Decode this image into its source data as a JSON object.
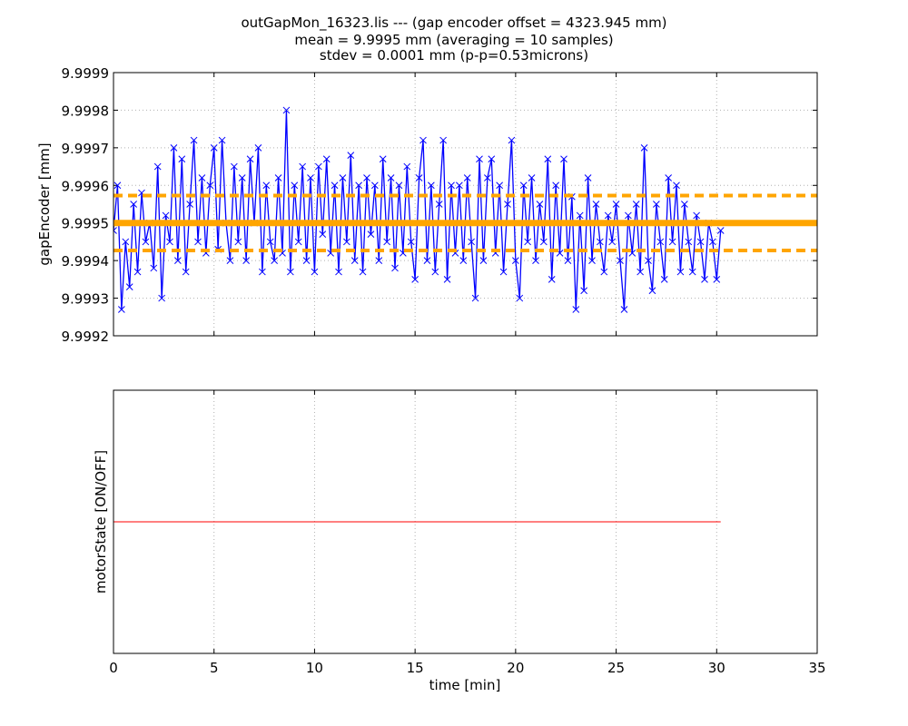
{
  "chart_data": [
    {
      "type": "line",
      "title_lines": [
        "outGapMon_16323.lis --- (gap encoder offset = 4323.945 mm)",
        "mean = 9.9995 mm (averaging = 10 samples)",
        "stdev = 0.0001 mm (p-p=0.53microns)"
      ],
      "xlabel": "",
      "ylabel": "gapEncoder [mm]",
      "xlim": [
        0,
        35
      ],
      "ylim": [
        9.9992,
        9.9999
      ],
      "yticks": [
        "9.9992",
        "9.9993",
        "9.9994",
        "9.9995",
        "9.9996",
        "9.9997",
        "9.9998",
        "9.9999"
      ],
      "xticks": [
        0,
        5,
        10,
        15,
        20,
        25,
        30,
        35
      ],
      "grid": true,
      "series": [
        {
          "name": "gapEncoder",
          "color": "#0000ff",
          "marker": "x",
          "x_start": 0,
          "x_step": 0.2,
          "values": [
            9.99948,
            9.9996,
            9.99927,
            9.99945,
            9.99933,
            9.99955,
            9.99937,
            9.99958,
            9.99945,
            9.9995,
            9.99938,
            9.99965,
            9.9993,
            9.99952,
            9.99945,
            9.9997,
            9.9994,
            9.99967,
            9.99937,
            9.99955,
            9.99972,
            9.99945,
            9.99962,
            9.99942,
            9.9996,
            9.9997,
            9.99943,
            9.99972,
            9.9995,
            9.9994,
            9.99965,
            9.99945,
            9.99962,
            9.9994,
            9.99967,
            9.9995,
            9.9997,
            9.99937,
            9.9996,
            9.99945,
            9.9994,
            9.99962,
            9.99942,
            9.9998,
            9.99937,
            9.9996,
            9.99945,
            9.99965,
            9.9994,
            9.99962,
            9.99937,
            9.99965,
            9.99947,
            9.99967,
            9.99942,
            9.9996,
            9.99937,
            9.99962,
            9.99945,
            9.99968,
            9.9994,
            9.9996,
            9.99937,
            9.99962,
            9.99947,
            9.9996,
            9.9994,
            9.99967,
            9.99945,
            9.99962,
            9.99938,
            9.9996,
            9.99942,
            9.99965,
            9.99945,
            9.99935,
            9.99962,
            9.99972,
            9.9994,
            9.9996,
            9.99937,
            9.99955,
            9.99972,
            9.99935,
            9.9996,
            9.99942,
            9.9996,
            9.9994,
            9.99962,
            9.99945,
            9.9993,
            9.99967,
            9.9994,
            9.99962,
            9.99967,
            9.99942,
            9.9996,
            9.99937,
            9.99955,
            9.99972,
            9.9994,
            9.9993,
            9.9996,
            9.99945,
            9.99962,
            9.9994,
            9.99955,
            9.99945,
            9.99967,
            9.99935,
            9.9996,
            9.99942,
            9.99967,
            9.9994,
            9.99957,
            9.99927,
            9.99952,
            9.99932,
            9.99962,
            9.9994,
            9.99955,
            9.99945,
            9.99937,
            9.99952,
            9.99945,
            9.99955,
            9.9994,
            9.99927,
            9.99952,
            9.99942,
            9.99955,
            9.99937,
            9.9997,
            9.9994,
            9.99932,
            9.99955,
            9.99945,
            9.99935,
            9.99962,
            9.99945,
            9.9996,
            9.99937,
            9.99955,
            9.99945,
            9.99937,
            9.99952,
            9.99945,
            9.99935,
            9.9995,
            9.99945,
            9.99935,
            9.99948
          ]
        }
      ],
      "hlines": [
        {
          "name": "mean",
          "y": 9.9995,
          "color": "#ffa500",
          "style": "solid"
        },
        {
          "name": "mean-plus-stdev",
          "y": 9.999573,
          "color": "#ffa500",
          "style": "dashed"
        },
        {
          "name": "mean-minus-stdev",
          "y": 9.999427,
          "color": "#ffa500",
          "style": "dashed"
        }
      ]
    },
    {
      "type": "line",
      "xlabel": "time [min]",
      "ylabel": "motorState [ON/OFF]",
      "xlim": [
        0,
        35
      ],
      "ylim": [
        -1,
        1
      ],
      "xticks": [
        0,
        5,
        10,
        15,
        20,
        25,
        30,
        35
      ],
      "grid": true,
      "series": [
        {
          "name": "motorState",
          "color": "#ff0000",
          "x": [
            0,
            30.2
          ],
          "values": [
            0,
            0
          ]
        }
      ]
    }
  ]
}
